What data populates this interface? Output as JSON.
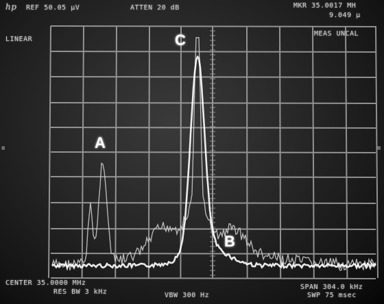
{
  "header": {
    "logo": "hp",
    "ref": "REF 50.05 µV",
    "atten": "ATTEN 20 dB",
    "marker_freq": "MKR 35.0017 MH",
    "marker_level": "9.049 µ",
    "scale": "LINEAR",
    "meas": "MEAS UNCAL"
  },
  "footer": {
    "center": "CENTER 35.0000 MHz",
    "res_bw": "RES BW 3 kHz",
    "vbw": "VBW 300 Hz",
    "span": "SPAN 304.0 kHz",
    "sweep": "SWP 75 msec"
  },
  "annotations": {
    "a": "A",
    "b": "B",
    "c": "C"
  },
  "colors": {
    "grid": "#b8b8b8",
    "trace": "#d6d6d6",
    "trace_bright": "#ffffff",
    "text": "#cfcfcf"
  }
}
